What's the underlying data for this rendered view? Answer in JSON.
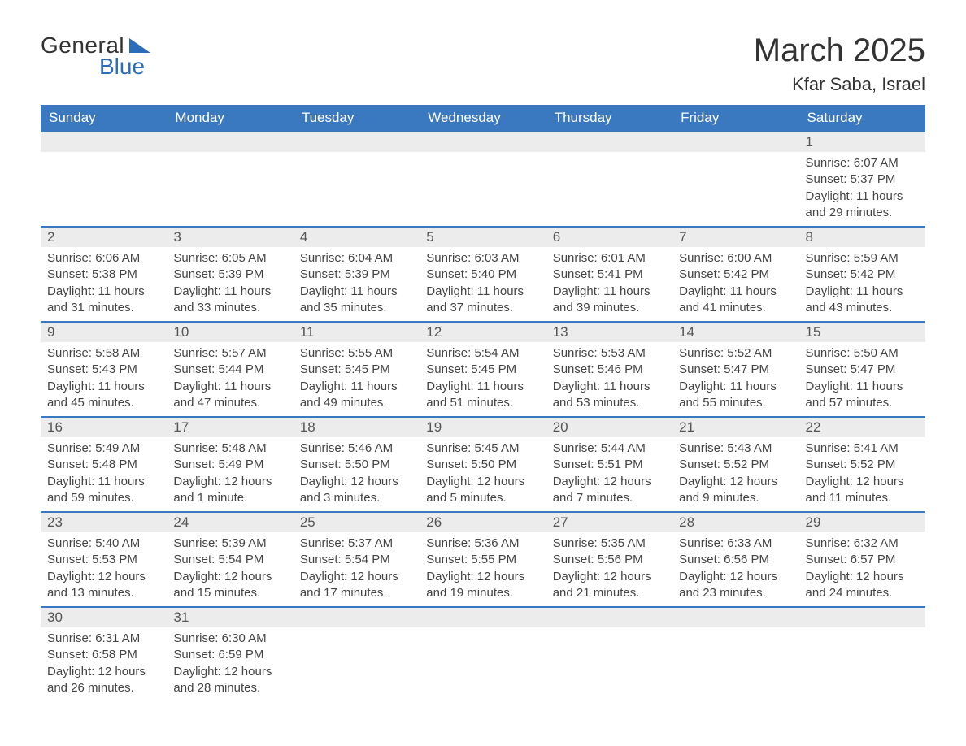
{
  "logo": {
    "word1": "General",
    "word2": "Blue",
    "text_color": "#333333",
    "accent_color": "#2a6db8"
  },
  "header": {
    "title": "March 2025",
    "location": "Kfar Saba, Israel"
  },
  "colors": {
    "header_bg": "#3a78bf",
    "header_text": "#ffffff",
    "daynum_bg": "#ececec",
    "daynum_text": "#555555",
    "body_text": "#444444",
    "row_border": "#3a78bf",
    "page_bg": "#ffffff"
  },
  "typography": {
    "title_fontsize": 40,
    "subtitle_fontsize": 22,
    "weekday_fontsize": 17,
    "daynum_fontsize": 17,
    "body_fontsize": 15
  },
  "calendar": {
    "type": "table",
    "weekdays": [
      "Sunday",
      "Monday",
      "Tuesday",
      "Wednesday",
      "Thursday",
      "Friday",
      "Saturday"
    ],
    "rows": [
      [
        null,
        null,
        null,
        null,
        null,
        null,
        {
          "n": "1",
          "sunrise": "Sunrise: 6:07 AM",
          "sunset": "Sunset: 5:37 PM",
          "dl1": "Daylight: 11 hours",
          "dl2": "and 29 minutes."
        }
      ],
      [
        {
          "n": "2",
          "sunrise": "Sunrise: 6:06 AM",
          "sunset": "Sunset: 5:38 PM",
          "dl1": "Daylight: 11 hours",
          "dl2": "and 31 minutes."
        },
        {
          "n": "3",
          "sunrise": "Sunrise: 6:05 AM",
          "sunset": "Sunset: 5:39 PM",
          "dl1": "Daylight: 11 hours",
          "dl2": "and 33 minutes."
        },
        {
          "n": "4",
          "sunrise": "Sunrise: 6:04 AM",
          "sunset": "Sunset: 5:39 PM",
          "dl1": "Daylight: 11 hours",
          "dl2": "and 35 minutes."
        },
        {
          "n": "5",
          "sunrise": "Sunrise: 6:03 AM",
          "sunset": "Sunset: 5:40 PM",
          "dl1": "Daylight: 11 hours",
          "dl2": "and 37 minutes."
        },
        {
          "n": "6",
          "sunrise": "Sunrise: 6:01 AM",
          "sunset": "Sunset: 5:41 PM",
          "dl1": "Daylight: 11 hours",
          "dl2": "and 39 minutes."
        },
        {
          "n": "7",
          "sunrise": "Sunrise: 6:00 AM",
          "sunset": "Sunset: 5:42 PM",
          "dl1": "Daylight: 11 hours",
          "dl2": "and 41 minutes."
        },
        {
          "n": "8",
          "sunrise": "Sunrise: 5:59 AM",
          "sunset": "Sunset: 5:42 PM",
          "dl1": "Daylight: 11 hours",
          "dl2": "and 43 minutes."
        }
      ],
      [
        {
          "n": "9",
          "sunrise": "Sunrise: 5:58 AM",
          "sunset": "Sunset: 5:43 PM",
          "dl1": "Daylight: 11 hours",
          "dl2": "and 45 minutes."
        },
        {
          "n": "10",
          "sunrise": "Sunrise: 5:57 AM",
          "sunset": "Sunset: 5:44 PM",
          "dl1": "Daylight: 11 hours",
          "dl2": "and 47 minutes."
        },
        {
          "n": "11",
          "sunrise": "Sunrise: 5:55 AM",
          "sunset": "Sunset: 5:45 PM",
          "dl1": "Daylight: 11 hours",
          "dl2": "and 49 minutes."
        },
        {
          "n": "12",
          "sunrise": "Sunrise: 5:54 AM",
          "sunset": "Sunset: 5:45 PM",
          "dl1": "Daylight: 11 hours",
          "dl2": "and 51 minutes."
        },
        {
          "n": "13",
          "sunrise": "Sunrise: 5:53 AM",
          "sunset": "Sunset: 5:46 PM",
          "dl1": "Daylight: 11 hours",
          "dl2": "and 53 minutes."
        },
        {
          "n": "14",
          "sunrise": "Sunrise: 5:52 AM",
          "sunset": "Sunset: 5:47 PM",
          "dl1": "Daylight: 11 hours",
          "dl2": "and 55 minutes."
        },
        {
          "n": "15",
          "sunrise": "Sunrise: 5:50 AM",
          "sunset": "Sunset: 5:47 PM",
          "dl1": "Daylight: 11 hours",
          "dl2": "and 57 minutes."
        }
      ],
      [
        {
          "n": "16",
          "sunrise": "Sunrise: 5:49 AM",
          "sunset": "Sunset: 5:48 PM",
          "dl1": "Daylight: 11 hours",
          "dl2": "and 59 minutes."
        },
        {
          "n": "17",
          "sunrise": "Sunrise: 5:48 AM",
          "sunset": "Sunset: 5:49 PM",
          "dl1": "Daylight: 12 hours",
          "dl2": "and 1 minute."
        },
        {
          "n": "18",
          "sunrise": "Sunrise: 5:46 AM",
          "sunset": "Sunset: 5:50 PM",
          "dl1": "Daylight: 12 hours",
          "dl2": "and 3 minutes."
        },
        {
          "n": "19",
          "sunrise": "Sunrise: 5:45 AM",
          "sunset": "Sunset: 5:50 PM",
          "dl1": "Daylight: 12 hours",
          "dl2": "and 5 minutes."
        },
        {
          "n": "20",
          "sunrise": "Sunrise: 5:44 AM",
          "sunset": "Sunset: 5:51 PM",
          "dl1": "Daylight: 12 hours",
          "dl2": "and 7 minutes."
        },
        {
          "n": "21",
          "sunrise": "Sunrise: 5:43 AM",
          "sunset": "Sunset: 5:52 PM",
          "dl1": "Daylight: 12 hours",
          "dl2": "and 9 minutes."
        },
        {
          "n": "22",
          "sunrise": "Sunrise: 5:41 AM",
          "sunset": "Sunset: 5:52 PM",
          "dl1": "Daylight: 12 hours",
          "dl2": "and 11 minutes."
        }
      ],
      [
        {
          "n": "23",
          "sunrise": "Sunrise: 5:40 AM",
          "sunset": "Sunset: 5:53 PM",
          "dl1": "Daylight: 12 hours",
          "dl2": "and 13 minutes."
        },
        {
          "n": "24",
          "sunrise": "Sunrise: 5:39 AM",
          "sunset": "Sunset: 5:54 PM",
          "dl1": "Daylight: 12 hours",
          "dl2": "and 15 minutes."
        },
        {
          "n": "25",
          "sunrise": "Sunrise: 5:37 AM",
          "sunset": "Sunset: 5:54 PM",
          "dl1": "Daylight: 12 hours",
          "dl2": "and 17 minutes."
        },
        {
          "n": "26",
          "sunrise": "Sunrise: 5:36 AM",
          "sunset": "Sunset: 5:55 PM",
          "dl1": "Daylight: 12 hours",
          "dl2": "and 19 minutes."
        },
        {
          "n": "27",
          "sunrise": "Sunrise: 5:35 AM",
          "sunset": "Sunset: 5:56 PM",
          "dl1": "Daylight: 12 hours",
          "dl2": "and 21 minutes."
        },
        {
          "n": "28",
          "sunrise": "Sunrise: 6:33 AM",
          "sunset": "Sunset: 6:56 PM",
          "dl1": "Daylight: 12 hours",
          "dl2": "and 23 minutes."
        },
        {
          "n": "29",
          "sunrise": "Sunrise: 6:32 AM",
          "sunset": "Sunset: 6:57 PM",
          "dl1": "Daylight: 12 hours",
          "dl2": "and 24 minutes."
        }
      ],
      [
        {
          "n": "30",
          "sunrise": "Sunrise: 6:31 AM",
          "sunset": "Sunset: 6:58 PM",
          "dl1": "Daylight: 12 hours",
          "dl2": "and 26 minutes."
        },
        {
          "n": "31",
          "sunrise": "Sunrise: 6:30 AM",
          "sunset": "Sunset: 6:59 PM",
          "dl1": "Daylight: 12 hours",
          "dl2": "and 28 minutes."
        },
        null,
        null,
        null,
        null,
        null
      ]
    ]
  }
}
